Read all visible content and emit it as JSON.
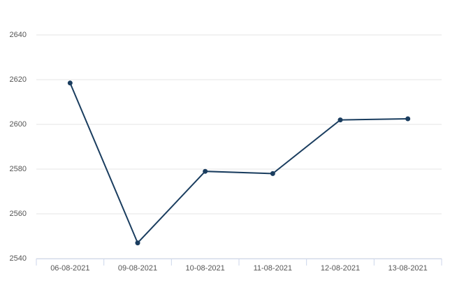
{
  "chart_data": {
    "type": "line",
    "categories": [
      "06-08-2021",
      "09-08-2021",
      "10-08-2021",
      "11-08-2021",
      "12-08-2021",
      "13-08-2021"
    ],
    "series": [
      {
        "color": "#1a3d5f",
        "values": [
          2618.5,
          2547,
          2579,
          2578,
          2602,
          2602.5
        ]
      }
    ],
    "ylim": [
      2540,
      2640
    ],
    "yticks": [
      2540,
      2560,
      2580,
      2600,
      2620,
      2640
    ],
    "grid": true
  }
}
